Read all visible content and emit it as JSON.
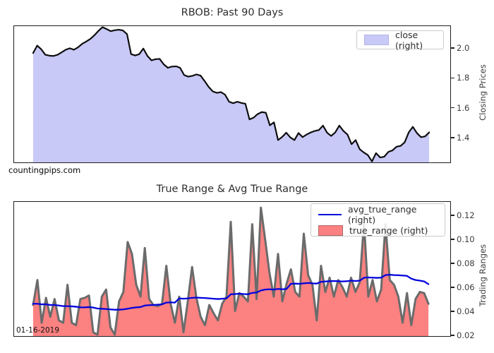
{
  "watermark": "countingpips.com",
  "date_label": "01-16-2019",
  "chart_data": [
    {
      "id": "price",
      "type": "area",
      "title": "RBOB: Past 90 Days",
      "ylabel": "Closing Prices",
      "axis_side": "right",
      "legend_position": "upper right",
      "grid": false,
      "legend": [
        {
          "label": "close (right)",
          "swatch": "area",
          "color": "#c9c9f8"
        }
      ],
      "yticks": [
        2.0,
        1.8,
        1.6,
        1.4
      ],
      "ytick_labels": [
        "2.0",
        "1.8",
        "1.6",
        "1.4"
      ],
      "ylim": [
        1.229,
        2.152
      ],
      "series": [
        {
          "name": "close",
          "type": "area",
          "fill": "#c9c9f8",
          "stroke": "#0d0d0d",
          "stroke_width": 2.2,
          "values": [
            1.97,
            2.02,
            1.995,
            1.958,
            1.952,
            1.95,
            1.958,
            1.975,
            1.992,
            2.002,
            1.992,
            2.008,
            2.032,
            2.048,
            2.065,
            2.09,
            2.12,
            2.145,
            2.132,
            2.118,
            2.124,
            2.128,
            2.122,
            2.098,
            1.962,
            1.953,
            1.962,
            2.0,
            1.95,
            1.92,
            1.928,
            1.93,
            1.893,
            1.87,
            1.878,
            1.88,
            1.87,
            1.82,
            1.81,
            1.815,
            1.825,
            1.817,
            1.78,
            1.74,
            1.71,
            1.7,
            1.705,
            1.688,
            1.64,
            1.63,
            1.64,
            1.632,
            1.626,
            1.52,
            1.532,
            1.556,
            1.57,
            1.566,
            1.48,
            1.5,
            1.38,
            1.402,
            1.43,
            1.398,
            1.38,
            1.428,
            1.4,
            1.418,
            1.432,
            1.442,
            1.448,
            1.478,
            1.43,
            1.408,
            1.432,
            1.478,
            1.442,
            1.418,
            1.352,
            1.38,
            1.318,
            1.296,
            1.278,
            1.235,
            1.292,
            1.262,
            1.268,
            1.3,
            1.31,
            1.335,
            1.34,
            1.365,
            1.432,
            1.47,
            1.428,
            1.4,
            1.405,
            1.432
          ]
        }
      ]
    },
    {
      "id": "ranges",
      "type": "line+area",
      "title": "True Range & Avg True Range",
      "ylabel": "Trading Ranges",
      "axis_side": "right",
      "legend_position": "upper right",
      "grid": false,
      "legend": [
        {
          "label": "avg_true_range (right)",
          "swatch": "line",
          "color": "#0202dd"
        },
        {
          "label": "true_range (right)",
          "swatch": "area",
          "color": "#fc8181"
        }
      ],
      "yticks": [
        0.12,
        0.1,
        0.08,
        0.06,
        0.04,
        0.02
      ],
      "ytick_labels": [
        "0.12",
        "0.10",
        "0.08",
        "0.06",
        "0.04",
        "0.02"
      ],
      "ylim": [
        0.0188,
        0.1318
      ],
      "series": [
        {
          "name": "true_range",
          "type": "area",
          "fill": "#fc8181",
          "stroke": "#6b6b6b",
          "stroke_width": 3,
          "values": [
            0.045,
            0.066,
            0.03,
            0.051,
            0.035,
            0.05,
            0.032,
            0.03,
            0.062,
            0.03,
            0.028,
            0.05,
            0.051,
            0.053,
            0.022,
            0.02,
            0.052,
            0.058,
            0.026,
            0.02,
            0.048,
            0.056,
            0.098,
            0.088,
            0.062,
            0.052,
            0.093,
            0.05,
            0.045,
            0.044,
            0.046,
            0.078,
            0.046,
            0.03,
            0.052,
            0.022,
            0.048,
            0.077,
            0.051,
            0.035,
            0.028,
            0.045,
            0.038,
            0.032,
            0.046,
            0.052,
            0.115,
            0.04,
            0.055,
            0.052,
            0.048,
            0.113,
            0.05,
            0.127,
            0.1,
            0.072,
            0.052,
            0.088,
            0.048,
            0.063,
            0.075,
            0.056,
            0.052,
            0.105,
            0.07,
            0.062,
            0.032,
            0.078,
            0.056,
            0.068,
            0.052,
            0.066,
            0.06,
            0.052,
            0.068,
            0.056,
            0.064,
            0.114,
            0.052,
            0.066,
            0.048,
            0.058,
            0.113,
            0.066,
            0.062,
            0.052,
            0.03,
            0.055,
            0.028,
            0.05,
            0.056,
            0.055,
            0.046
          ]
        },
        {
          "name": "avg_true_range",
          "type": "line",
          "stroke": "#0202dd",
          "stroke_width": 2.3,
          "values": [
            0.046,
            0.046,
            0.0455,
            0.0455,
            0.045,
            0.045,
            0.0445,
            0.044,
            0.044,
            0.0438,
            0.0435,
            0.043,
            0.043,
            0.0432,
            0.0428,
            0.042,
            0.0418,
            0.0415,
            0.0412,
            0.041,
            0.041,
            0.0412,
            0.0418,
            0.0425,
            0.043,
            0.0432,
            0.0445,
            0.0448,
            0.045,
            0.0452,
            0.0455,
            0.047,
            0.0472,
            0.047,
            0.0505,
            0.0502,
            0.0505,
            0.051,
            0.0512,
            0.051,
            0.0508,
            0.0505,
            0.0502,
            0.05,
            0.0502,
            0.0505,
            0.054,
            0.0542,
            0.0545,
            0.0542,
            0.054,
            0.0552,
            0.0555,
            0.0572,
            0.058,
            0.0582,
            0.058,
            0.0585,
            0.0582,
            0.0585,
            0.0628,
            0.063,
            0.0628,
            0.0632,
            0.0635,
            0.0632,
            0.063,
            0.0645,
            0.0648,
            0.065,
            0.0652,
            0.065,
            0.0648,
            0.065,
            0.0655,
            0.0652,
            0.0655,
            0.068,
            0.0682,
            0.068,
            0.0678,
            0.068,
            0.0702,
            0.0705,
            0.0702,
            0.07,
            0.0698,
            0.0695,
            0.0672,
            0.066,
            0.0655,
            0.0648,
            0.0625
          ]
        }
      ]
    }
  ]
}
